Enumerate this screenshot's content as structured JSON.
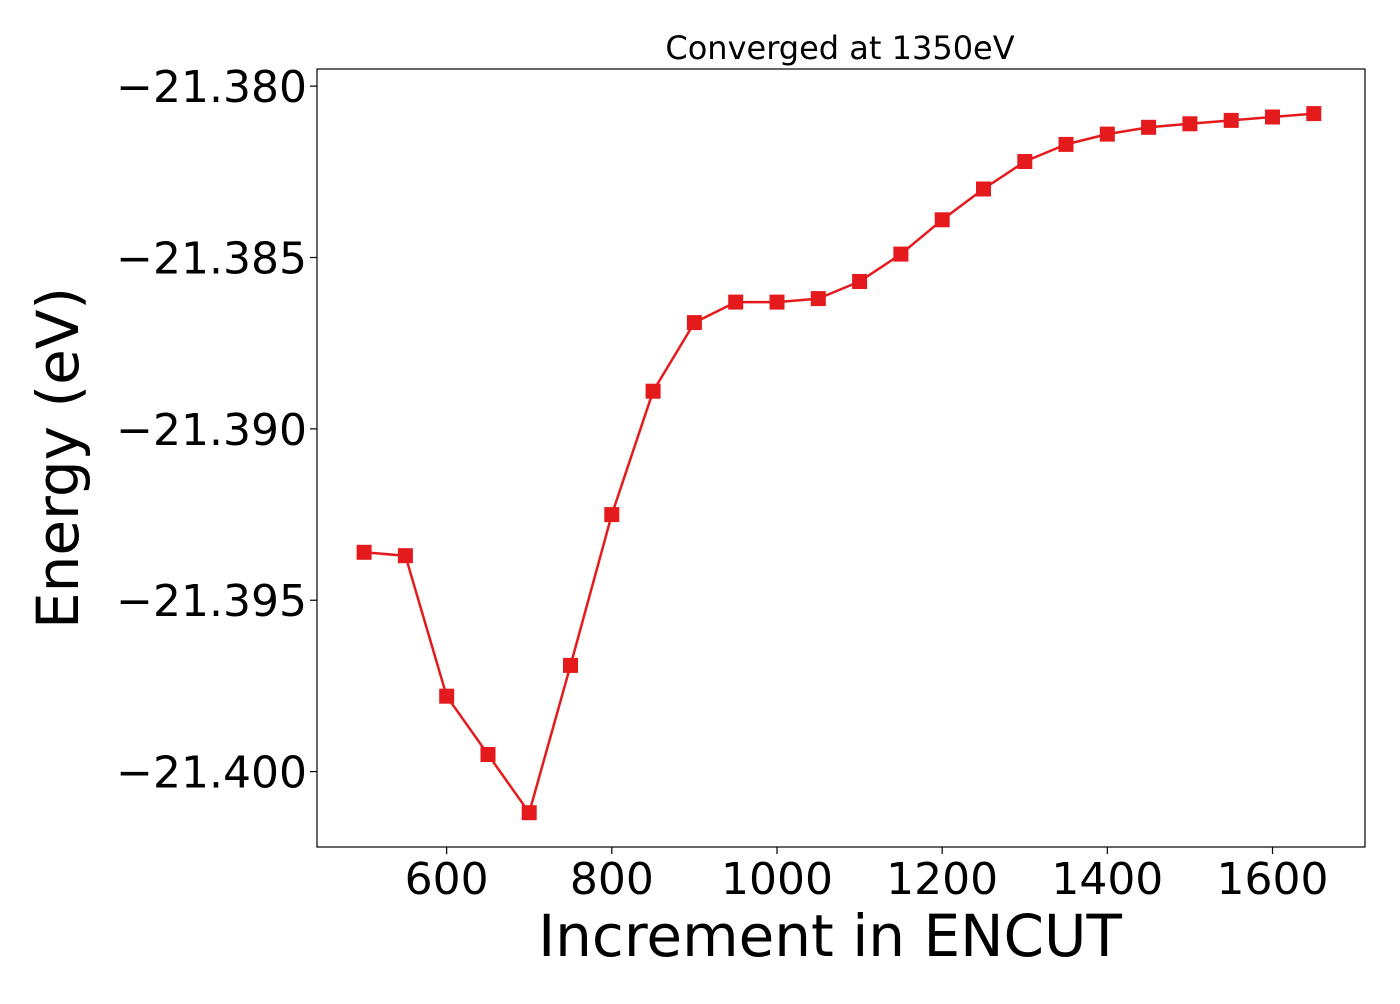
{
  "chart_data": {
    "type": "line",
    "title": "Converged at 1350eV",
    "xlabel": "Increment in ENCUT",
    "ylabel": "Energy (eV)",
    "xlim": [
      443,
      1712
    ],
    "ylim": [
      -21.4022,
      -21.3795
    ],
    "xticks": [
      600,
      800,
      1000,
      1200,
      1400,
      1600
    ],
    "xtick_labels": [
      "600",
      "800",
      "1000",
      "1200",
      "1400",
      "1600"
    ],
    "yticks": [
      -21.38,
      -21.385,
      -21.39,
      -21.395,
      -21.4
    ],
    "ytick_labels": [
      "−21.380",
      "−21.385",
      "−21.390",
      "−21.395",
      "−21.400"
    ],
    "grid": false,
    "marker": "square",
    "color": "#e41a1c",
    "series": [
      {
        "x": [
          500,
          550,
          600,
          650,
          700,
          750,
          800,
          850,
          900,
          950,
          1000,
          1050,
          1100,
          1150,
          1200,
          1250,
          1300,
          1350,
          1400,
          1450,
          1500,
          1550,
          1600,
          1650
        ],
        "y": [
          -21.3936,
          -21.3937,
          -21.3978,
          -21.3995,
          -21.4012,
          -21.3969,
          -21.3925,
          -21.3889,
          -21.3869,
          -21.3863,
          -21.3863,
          -21.3862,
          -21.3857,
          -21.3849,
          -21.3839,
          -21.383,
          -21.3822,
          -21.3817,
          -21.3814,
          -21.3812,
          -21.3811,
          -21.381,
          -21.3809,
          -21.3808
        ]
      }
    ]
  }
}
